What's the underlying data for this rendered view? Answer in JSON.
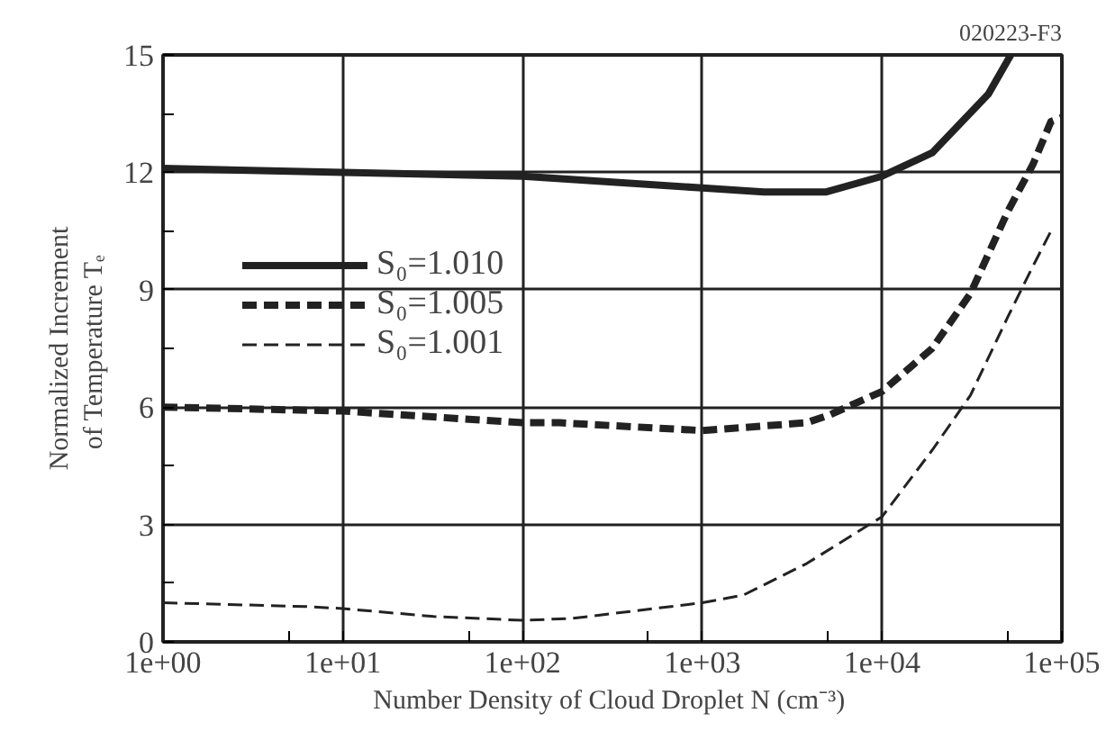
{
  "chart_data": {
    "type": "line",
    "xlabel": "Number Density of Cloud Droplet  N (cm⁻³)",
    "ylabel": "Normalized Increment\nof Temperature  Tₑ",
    "annotations": [
      "020223-F3"
    ],
    "log": "x",
    "grid": true,
    "legend": "left",
    "tick_labels": true,
    "xlim": [
      1,
      100000
    ],
    "ylim": [
      0,
      15
    ],
    "xticks": [
      {
        "value": 1,
        "label": "1e+00"
      },
      {
        "value": 5,
        "label": null
      },
      {
        "value": 10,
        "label": "1e+01"
      },
      {
        "value": 50,
        "label": null
      },
      {
        "value": 100,
        "label": "1e+02"
      },
      {
        "value": 500,
        "label": null
      },
      {
        "value": 1000,
        "label": "1e+03"
      },
      {
        "value": 5000,
        "label": null
      },
      {
        "value": 10000,
        "label": "1e+04"
      },
      {
        "value": 50000,
        "label": null
      },
      {
        "value": 100000,
        "label": "1e+05"
      }
    ],
    "yticks": [
      0,
      {
        "value": 1.5,
        "label": null
      },
      3,
      {
        "value": 4.5,
        "label": null
      },
      6,
      {
        "value": 7.5,
        "label": null
      },
      9,
      {
        "value": 10.5,
        "label": null
      },
      12,
      {
        "value": 13.5,
        "label": null
      },
      15
    ],
    "series": [
      {
        "name": "S₀=1.010",
        "color": "#222222",
        "line_style": "solid",
        "x": [
          1,
          10,
          100,
          1000,
          2200,
          4900,
          10000,
          19000,
          39000,
          52000
        ],
        "values": [
          12.1,
          12.0,
          11.9,
          11.6,
          11.5,
          11.5,
          11.9,
          12.5,
          14.0,
          15.0
        ]
      },
      {
        "name": "S₀=1.005",
        "color": "#222222",
        "line_style": "dashed",
        "x": [
          1,
          10,
          100,
          160,
          1000,
          3800,
          5100,
          10000,
          19000,
          31000,
          50000,
          69000,
          87000,
          100000
        ],
        "values": [
          6.0,
          5.9,
          5.6,
          5.6,
          5.4,
          5.6,
          5.8,
          6.4,
          7.5,
          8.9,
          11.0,
          12.2,
          13.3,
          13.4
        ]
      },
      {
        "name": "S₀=1.001",
        "color": "#222222",
        "line_style": "dashed",
        "x": [
          1,
          6.5,
          10,
          32,
          100,
          190,
          1000,
          1700,
          3800,
          10000,
          19000,
          31000,
          50000,
          69000,
          87000
        ],
        "values": [
          1.0,
          0.9,
          0.85,
          0.65,
          0.55,
          0.6,
          1.0,
          1.2,
          2.0,
          3.2,
          4.9,
          6.3,
          8.3,
          9.6,
          10.5
        ]
      }
    ]
  }
}
